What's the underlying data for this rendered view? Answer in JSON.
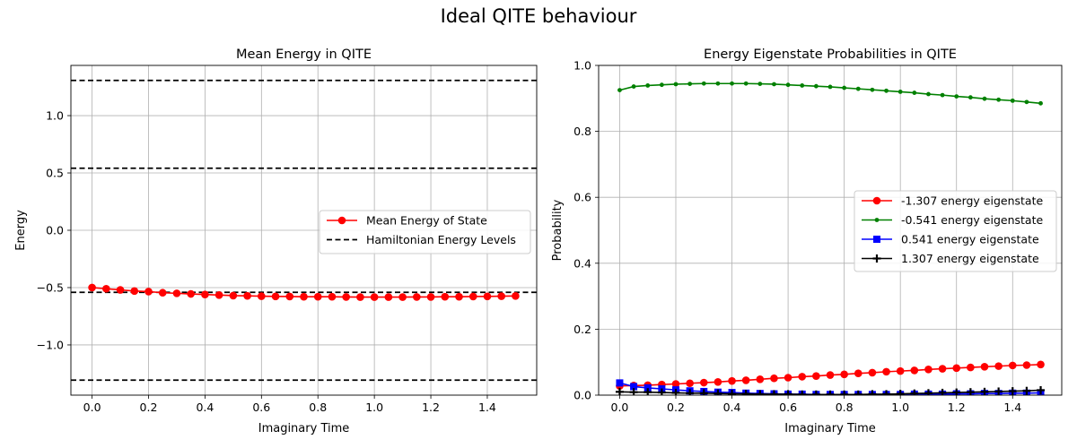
{
  "figure": {
    "title": "Ideal QITE behaviour"
  },
  "chart_data": [
    {
      "type": "line",
      "title": "Mean Energy in QITE",
      "xlabel": "Imaginary Time",
      "ylabel": "Energy",
      "xlim": [
        -0.075,
        1.575
      ],
      "ylim": [
        -1.438,
        1.438
      ],
      "xticks": [
        "0.0",
        "0.2",
        "0.4",
        "0.6",
        "0.8",
        "1.0",
        "1.2",
        "1.4"
      ],
      "yticks": [
        "−1.0",
        "−0.5",
        "0.0",
        "0.5",
        "1.0"
      ],
      "grid": true,
      "legend": "center-right",
      "x": [
        0.0,
        0.05,
        0.1,
        0.15,
        0.2,
        0.25,
        0.3,
        0.35,
        0.4,
        0.45,
        0.5,
        0.55,
        0.6,
        0.65,
        0.7,
        0.75,
        0.8,
        0.85,
        0.9,
        0.95,
        1.0,
        1.05,
        1.1,
        1.15,
        1.2,
        1.25,
        1.3,
        1.35,
        1.4,
        1.45,
        1.5
      ],
      "series": [
        {
          "name": "Mean Energy of State",
          "color": "#ff0000",
          "marker": "circle",
          "values": [
            -0.5,
            -0.51,
            -0.52,
            -0.53,
            -0.535,
            -0.545,
            -0.55,
            -0.555,
            -0.56,
            -0.565,
            -0.57,
            -0.572,
            -0.575,
            -0.577,
            -0.578,
            -0.58,
            -0.58,
            -0.58,
            -0.582,
            -0.583,
            -0.583,
            -0.583,
            -0.583,
            -0.582,
            -0.582,
            -0.58,
            -0.58,
            -0.578,
            -0.577,
            -0.575,
            -0.573
          ]
        }
      ],
      "hlines": {
        "name": "Hamiltonian Energy Levels",
        "color": "#000000",
        "values": [
          -1.307,
          -0.541,
          0.541,
          1.307
        ]
      }
    },
    {
      "type": "line",
      "title": "Energy Eigenstate Probabilities in QITE",
      "xlabel": "Imaginary Time",
      "ylabel": "Probability",
      "xlim": [
        -0.075,
        1.575
      ],
      "ylim": [
        0.0,
        1.0
      ],
      "xticks": [
        "0.0",
        "0.2",
        "0.4",
        "0.6",
        "0.8",
        "1.0",
        "1.2",
        "1.4"
      ],
      "yticks": [
        "0.0",
        "0.2",
        "0.4",
        "0.6",
        "0.8",
        "1.0"
      ],
      "grid": true,
      "legend": "center-right",
      "x": [
        0.0,
        0.05,
        0.1,
        0.15,
        0.2,
        0.25,
        0.3,
        0.35,
        0.4,
        0.45,
        0.5,
        0.55,
        0.6,
        0.65,
        0.7,
        0.75,
        0.8,
        0.85,
        0.9,
        0.95,
        1.0,
        1.05,
        1.1,
        1.15,
        1.2,
        1.25,
        1.3,
        1.35,
        1.4,
        1.45,
        1.5
      ],
      "series": [
        {
          "name": "-1.307 energy eigenstate",
          "color": "#ff0000",
          "marker": "circle",
          "values": [
            0.028,
            0.029,
            0.03,
            0.032,
            0.034,
            0.036,
            0.038,
            0.04,
            0.043,
            0.045,
            0.048,
            0.051,
            0.053,
            0.056,
            0.058,
            0.061,
            0.063,
            0.066,
            0.068,
            0.071,
            0.073,
            0.075,
            0.078,
            0.08,
            0.082,
            0.084,
            0.086,
            0.088,
            0.09,
            0.091,
            0.093
          ]
        },
        {
          "name": "-0.541 energy eigenstate",
          "color": "#008000",
          "marker": "dot",
          "values": [
            0.925,
            0.936,
            0.939,
            0.941,
            0.943,
            0.944,
            0.945,
            0.945,
            0.945,
            0.945,
            0.944,
            0.943,
            0.941,
            0.939,
            0.937,
            0.935,
            0.932,
            0.929,
            0.926,
            0.923,
            0.92,
            0.917,
            0.913,
            0.91,
            0.906,
            0.903,
            0.899,
            0.896,
            0.893,
            0.889,
            0.885
          ]
        },
        {
          "name": "0.541 energy eigenstate",
          "color": "#0000ff",
          "marker": "square",
          "values": [
            0.037,
            0.026,
            0.022,
            0.019,
            0.016,
            0.013,
            0.011,
            0.009,
            0.008,
            0.006,
            0.005,
            0.004,
            0.003,
            0.003,
            0.002,
            0.002,
            0.002,
            0.002,
            0.002,
            0.002,
            0.002,
            0.003,
            0.003,
            0.003,
            0.004,
            0.004,
            0.005,
            0.005,
            0.006,
            0.006,
            0.007
          ]
        },
        {
          "name": "1.307 energy eigenstate",
          "color": "#000000",
          "marker": "plus",
          "values": [
            0.01,
            0.009,
            0.009,
            0.008,
            0.007,
            0.006,
            0.006,
            0.005,
            0.004,
            0.004,
            0.003,
            0.003,
            0.003,
            0.002,
            0.002,
            0.002,
            0.002,
            0.002,
            0.003,
            0.003,
            0.004,
            0.005,
            0.006,
            0.007,
            0.008,
            0.009,
            0.01,
            0.011,
            0.012,
            0.013,
            0.015
          ]
        }
      ]
    }
  ]
}
